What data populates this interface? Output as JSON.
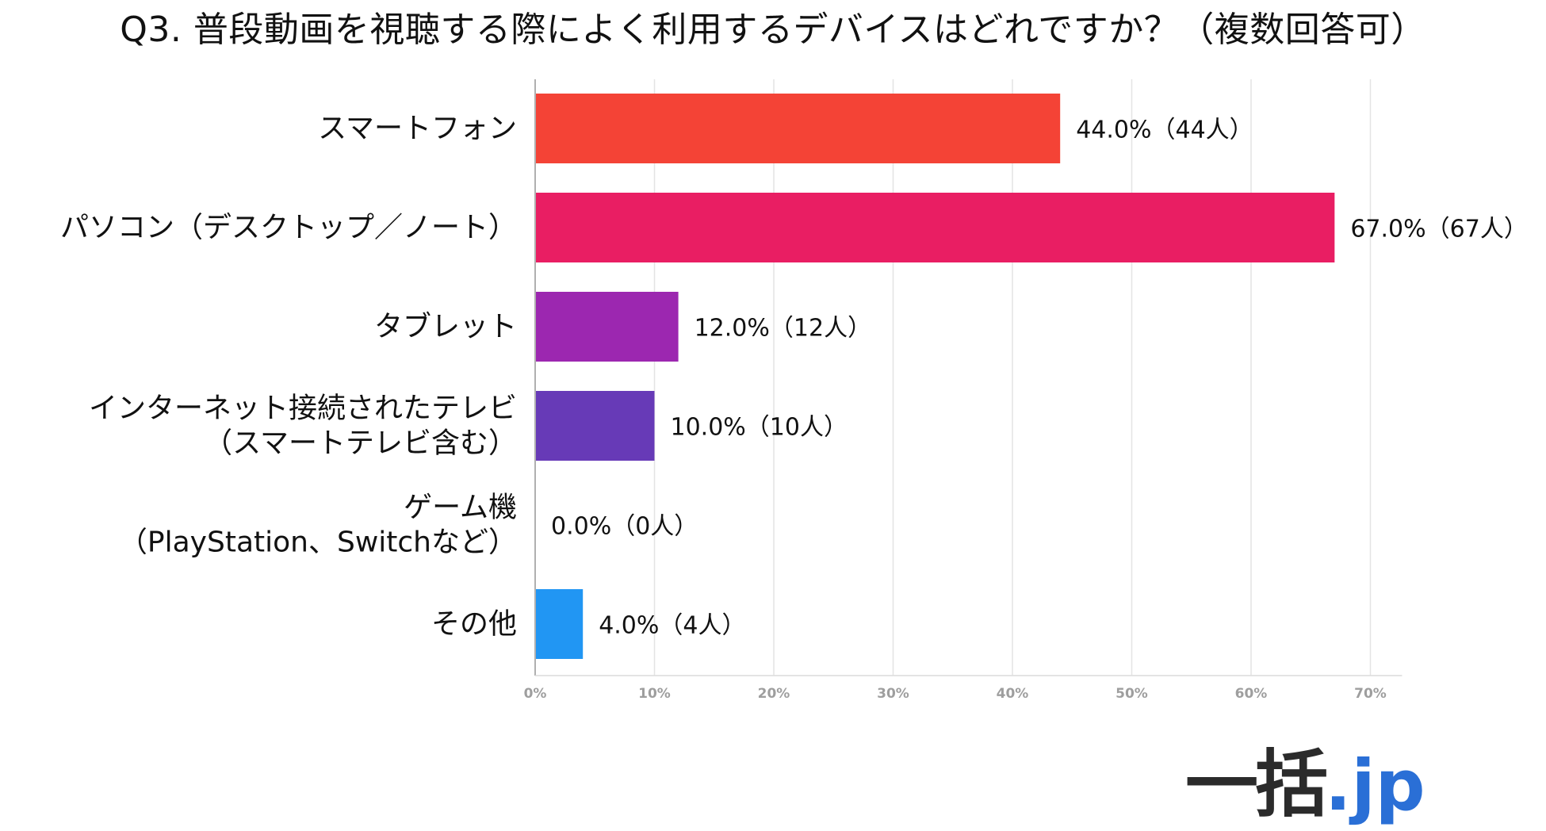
{
  "chart_data": {
    "type": "bar",
    "orientation": "horizontal",
    "title": "Q3. 普段動画を視聴する際によく利用するデバイスはどれですか？（複数回答可）",
    "categories": [
      [
        "スマートフォン"
      ],
      [
        "パソコン（デスクトップ／ノート）"
      ],
      [
        "タブレット"
      ],
      [
        "インターネット接続されたテレビ",
        "（スマートテレビ含む）"
      ],
      [
        "ゲーム機",
        "（PlayStation、Switchなど）"
      ],
      [
        "その他"
      ]
    ],
    "values": [
      44.0,
      67.0,
      12.0,
      10.0,
      0.0,
      4.0
    ],
    "data_labels": [
      "44.0%（44人）",
      "67.0%（67人）",
      "12.0%（12人）",
      "10.0%（10人）",
      "0.0%（0人）",
      "4.0%（4人）"
    ],
    "colors": [
      "#f44336",
      "#e91e63",
      "#9c27b0",
      "#673ab7",
      "#3f51b5",
      "#2196f3"
    ],
    "xlim": [
      0,
      70
    ],
    "xticks": [
      "0%",
      "10%",
      "20%",
      "30%",
      "40%",
      "50%",
      "60%",
      "70%"
    ],
    "grid": true,
    "xlabel": "",
    "ylabel": ""
  },
  "brand": {
    "main": "一括",
    "suffix": ".jp"
  }
}
